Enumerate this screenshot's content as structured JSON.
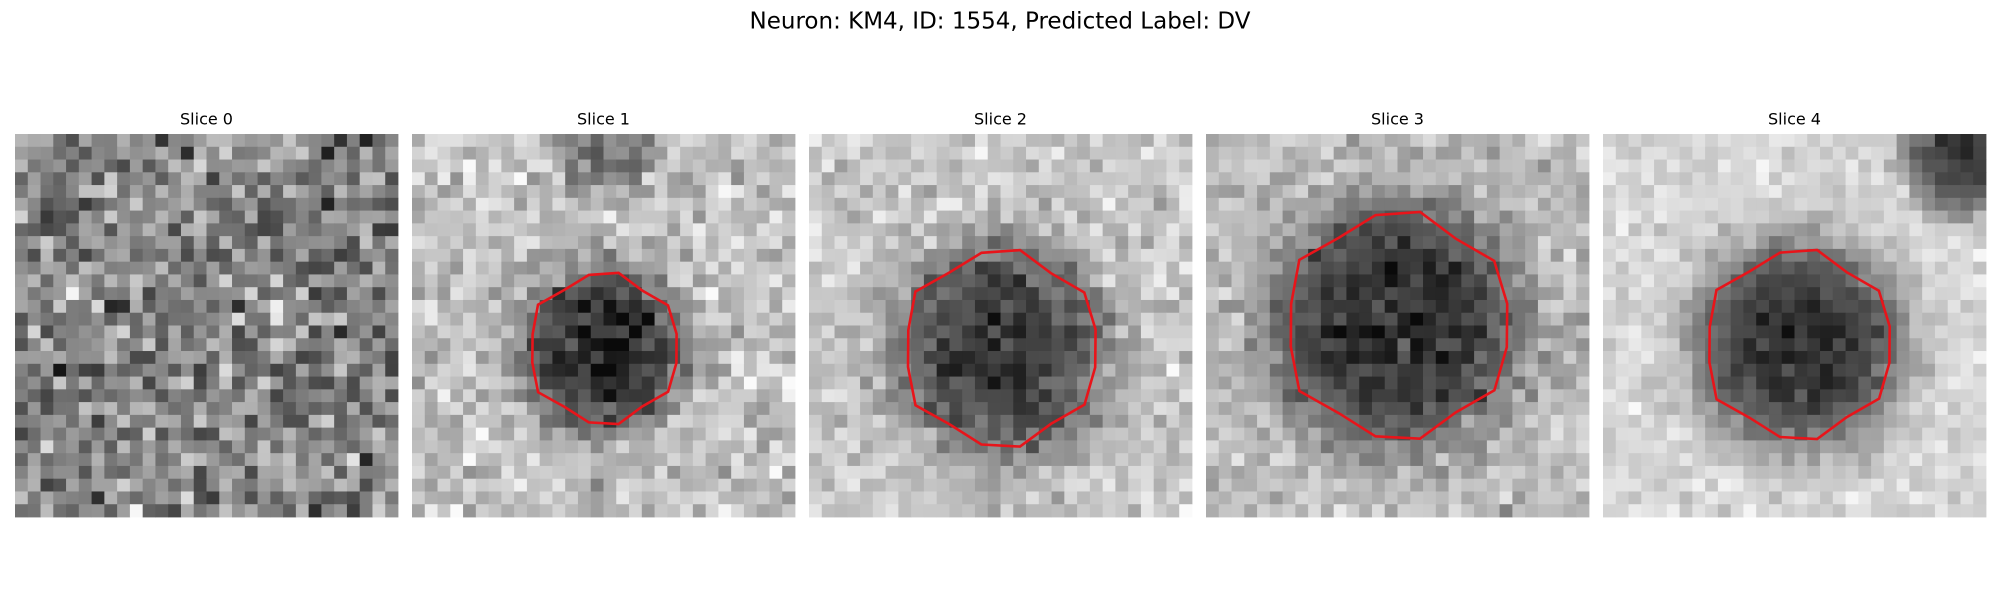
{
  "header": {
    "title": "Neuron: KM4, ID: 1554, Predicted Label: DV"
  },
  "panels": [
    {
      "title": "Slice 0"
    },
    {
      "title": "Slice 1"
    },
    {
      "title": "Slice 2"
    },
    {
      "title": "Slice 3"
    },
    {
      "title": "Slice 4"
    }
  ]
}
